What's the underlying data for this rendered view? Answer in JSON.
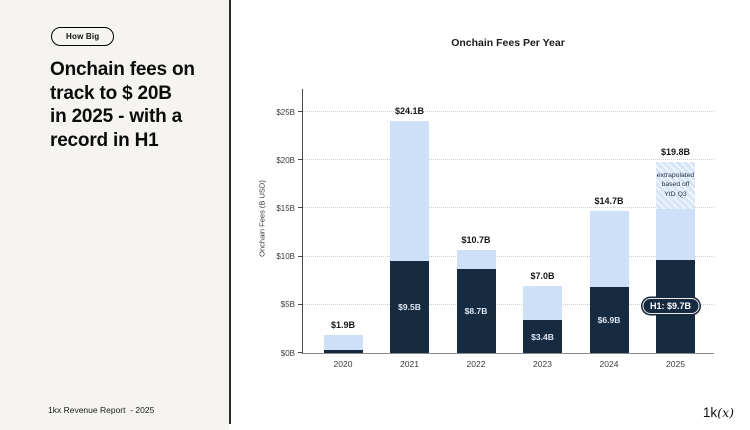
{
  "left_panel": {
    "badge": "How Big",
    "headline": "Onchain fees on\ntrack to $ 20B\nin 2025 - with a\nrecord in H1",
    "footer": "1kx Revenue Report  - 2025"
  },
  "logo": {
    "prefix": "1k",
    "suffix": "(x)"
  },
  "colors": {
    "dark_navy": "#162a40",
    "light_blue": "#cde0f7",
    "hatch_blue": "#d9e6f8",
    "left_panel_bg": "#f5f4f1"
  },
  "chart_data": {
    "type": "bar",
    "stacked": true,
    "title": "Onchain Fees Per Year",
    "xlabel": "",
    "ylabel": "Onchain Fees (B USD)",
    "categories": [
      "2020",
      "2021",
      "2022",
      "2023",
      "2024",
      "2025"
    ],
    "yticks": [
      "$0B",
      "$5B",
      "$10B",
      "$15B",
      "$20B",
      "$25B"
    ],
    "ytick_values": [
      0,
      5,
      10,
      15,
      20,
      25
    ],
    "ylim": [
      0,
      27.5
    ],
    "grid": "dotted-horizontal",
    "legend": "none",
    "series": [
      {
        "key": "dark",
        "color": "#162a40",
        "values": [
          0.3,
          9.5,
          8.7,
          3.4,
          6.9,
          9.7
        ],
        "labels": [
          "",
          "$9.5B",
          "$8.7B",
          "$3.4B",
          "$6.9B",
          ""
        ]
      },
      {
        "key": "light",
        "color": "#cde0f7",
        "values": [
          1.6,
          14.6,
          2.0,
          3.6,
          7.8,
          5.2
        ]
      },
      {
        "key": "extrapolated",
        "color": "#d9e6f8",
        "hatched": true,
        "values": [
          0,
          0,
          0,
          0,
          0,
          4.9
        ]
      }
    ],
    "totals": [
      "$1.9B",
      "$24.1B",
      "$10.7B",
      "$7.0B",
      "$14.7B",
      "$19.8B"
    ],
    "total_values": [
      1.9,
      24.1,
      10.7,
      7.0,
      14.7,
      19.8
    ],
    "annotations": {
      "h1_pill": "H1: $9.7B",
      "extrapolated_note": "extrapolated\nbased off\nYtD Q3"
    }
  }
}
